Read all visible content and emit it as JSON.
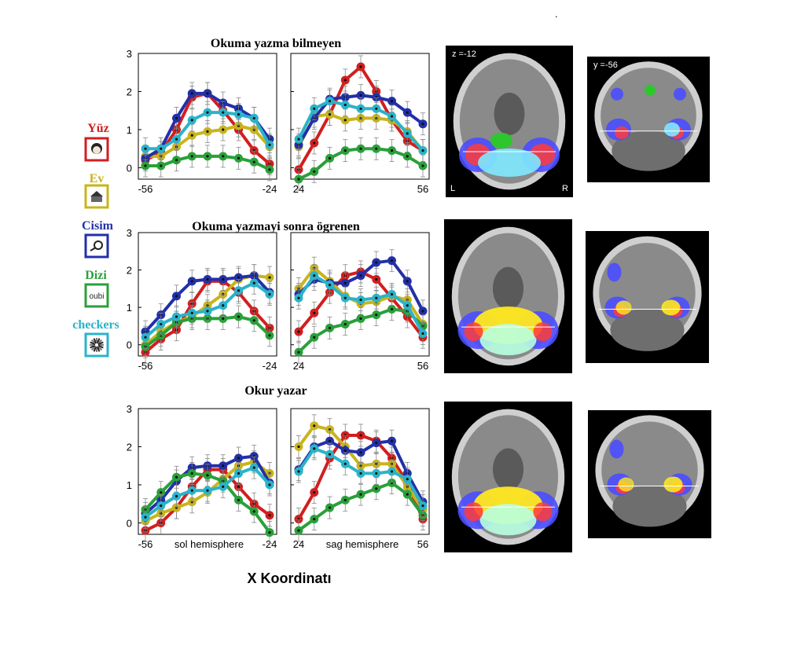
{
  "top_dot": ".",
  "xlabel_main": "X Koordinatı",
  "legend": [
    {
      "label": "Yüz",
      "color": "#d11f1f",
      "icon": "face-icon"
    },
    {
      "label": "Ev",
      "color": "#c8b41e",
      "icon": "house-icon"
    },
    {
      "label": "Cisim",
      "color": "#2230a8",
      "icon": "tool-icon"
    },
    {
      "label": "Dizi",
      "color": "#2aa03a",
      "icon": "string-icon",
      "icon_text": "oubi"
    },
    {
      "label": "checkers",
      "color": "#2bb3c9",
      "icon": "checkerboard-icon"
    }
  ],
  "brain_labels": {
    "axial": "z =-12",
    "coronal": "y =-56",
    "left": "L",
    "right": "R"
  },
  "chart_data": [
    {
      "type": "line",
      "title": "Okuma yazma bilmeyen",
      "ylim": [
        -0.3,
        3
      ],
      "yticks": [
        0,
        1,
        2,
        3
      ],
      "left": {
        "x": [
          -56,
          -52,
          -48,
          -44,
          -40,
          -36,
          -32,
          -28,
          -24
        ],
        "xticks": [
          "-56",
          "-24"
        ],
        "xlabel": "",
        "series": [
          {
            "key": "yuz",
            "color": "#d11f1f",
            "values": [
              0.2,
              0.4,
              1.0,
              1.85,
              1.95,
              1.5,
              1.0,
              0.45,
              0.1
            ]
          },
          {
            "key": "ev",
            "color": "#c8b41e",
            "values": [
              0.3,
              0.3,
              0.55,
              0.85,
              0.95,
              1.0,
              1.1,
              1.0,
              0.55
            ]
          },
          {
            "key": "cisim",
            "color": "#2230a8",
            "values": [
              0.25,
              0.5,
              1.3,
              1.95,
              1.95,
              1.7,
              1.55,
              1.3,
              0.75
            ]
          },
          {
            "key": "dizi",
            "color": "#2aa03a",
            "values": [
              0.05,
              0.05,
              0.2,
              0.3,
              0.3,
              0.3,
              0.25,
              0.15,
              -0.05
            ]
          },
          {
            "key": "checkers",
            "color": "#2bb3c9",
            "values": [
              0.5,
              0.5,
              0.75,
              1.25,
              1.45,
              1.45,
              1.4,
              1.3,
              0.6
            ]
          }
        ]
      },
      "right": {
        "x": [
          24,
          28,
          32,
          36,
          40,
          44,
          48,
          52,
          56
        ],
        "xticks": [
          "24",
          "56"
        ],
        "xlabel": "",
        "series": [
          {
            "key": "yuz",
            "color": "#d11f1f",
            "values": [
              -0.05,
              0.65,
              1.4,
              2.3,
              2.65,
              2.0,
              1.25,
              0.7,
              0.45
            ]
          },
          {
            "key": "ev",
            "color": "#c8b41e",
            "values": [
              0.55,
              1.35,
              1.4,
              1.25,
              1.3,
              1.3,
              1.25,
              0.95,
              0.45
            ]
          },
          {
            "key": "cisim",
            "color": "#2230a8",
            "values": [
              0.6,
              1.3,
              1.8,
              1.85,
              1.9,
              1.85,
              1.75,
              1.45,
              1.15
            ]
          },
          {
            "key": "dizi",
            "color": "#2aa03a",
            "values": [
              -0.3,
              -0.1,
              0.25,
              0.45,
              0.5,
              0.5,
              0.45,
              0.3,
              0.05
            ]
          },
          {
            "key": "checkers",
            "color": "#2bb3c9",
            "values": [
              0.75,
              1.55,
              1.75,
              1.65,
              1.55,
              1.55,
              1.35,
              0.9,
              0.45
            ]
          }
        ]
      }
    },
    {
      "type": "line",
      "title": "Okuma yazmayi sonra ögrenen",
      "ylim": [
        -0.3,
        3
      ],
      "yticks": [
        0,
        1,
        2,
        3
      ],
      "left": {
        "x": [
          -56,
          -52,
          -48,
          -44,
          -40,
          -36,
          -32,
          -28,
          -24
        ],
        "xticks": [
          "-56",
          "-24"
        ],
        "xlabel": "",
        "series": [
          {
            "key": "yuz",
            "color": "#d11f1f",
            "values": [
              -0.2,
              0.15,
              0.4,
              1.1,
              1.7,
              1.7,
              1.4,
              0.9,
              0.45
            ]
          },
          {
            "key": "ev",
            "color": "#c8b41e",
            "values": [
              0.0,
              0.35,
              0.6,
              0.75,
              1.05,
              1.35,
              1.75,
              1.85,
              1.8
            ]
          },
          {
            "key": "cisim",
            "color": "#2230a8",
            "values": [
              0.35,
              0.8,
              1.3,
              1.7,
              1.75,
              1.75,
              1.8,
              1.85,
              1.4
            ]
          },
          {
            "key": "dizi",
            "color": "#2aa03a",
            "values": [
              -0.05,
              0.25,
              0.6,
              0.7,
              0.7,
              0.7,
              0.75,
              0.65,
              0.25
            ]
          },
          {
            "key": "checkers",
            "color": "#2bb3c9",
            "values": [
              0.2,
              0.55,
              0.75,
              0.85,
              0.9,
              1.05,
              1.45,
              1.65,
              1.35
            ]
          }
        ]
      },
      "right": {
        "x": [
          24,
          28,
          32,
          36,
          40,
          44,
          48,
          52,
          56
        ],
        "xticks": [
          "24",
          "56"
        ],
        "xlabel": "",
        "series": [
          {
            "key": "yuz",
            "color": "#d11f1f",
            "values": [
              0.35,
              0.85,
              1.4,
              1.85,
              1.95,
              1.75,
              1.25,
              0.75,
              0.2
            ]
          },
          {
            "key": "ev",
            "color": "#c8b41e",
            "values": [
              1.5,
              2.05,
              1.7,
              1.3,
              1.1,
              1.15,
              1.3,
              1.2,
              0.55
            ]
          },
          {
            "key": "cisim",
            "color": "#2230a8",
            "values": [
              1.35,
              1.75,
              1.65,
              1.65,
              1.85,
              2.2,
              2.25,
              1.7,
              0.9
            ]
          },
          {
            "key": "dizi",
            "color": "#2aa03a",
            "values": [
              -0.2,
              0.2,
              0.45,
              0.55,
              0.7,
              0.8,
              0.95,
              0.9,
              0.5
            ]
          },
          {
            "key": "checkers",
            "color": "#2bb3c9",
            "values": [
              1.25,
              1.85,
              1.6,
              1.25,
              1.2,
              1.25,
              1.35,
              1.05,
              0.3
            ]
          }
        ]
      }
    },
    {
      "type": "line",
      "title": "Okur yazar",
      "ylim": [
        -0.3,
        3
      ],
      "yticks": [
        0,
        1,
        2,
        3
      ],
      "left": {
        "x": [
          -56,
          -52,
          -48,
          -44,
          -40,
          -36,
          -32,
          -28,
          -24
        ],
        "xticks": [
          "-56",
          "-24"
        ],
        "xlabel": "sol hemisphere",
        "series": [
          {
            "key": "yuz",
            "color": "#d11f1f",
            "values": [
              -0.2,
              0.0,
              0.4,
              0.95,
              1.4,
              1.4,
              0.95,
              0.5,
              0.2
            ]
          },
          {
            "key": "ev",
            "color": "#c8b41e",
            "values": [
              0.05,
              0.25,
              0.4,
              0.55,
              0.8,
              1.15,
              1.5,
              1.6,
              1.3
            ]
          },
          {
            "key": "cisim",
            "color": "#2230a8",
            "values": [
              0.25,
              0.6,
              1.1,
              1.45,
              1.5,
              1.5,
              1.7,
              1.75,
              1.05
            ]
          },
          {
            "key": "dizi",
            "color": "#2aa03a",
            "values": [
              0.35,
              0.8,
              1.2,
              1.3,
              1.25,
              1.1,
              0.6,
              0.3,
              -0.25
            ]
          },
          {
            "key": "checkers",
            "color": "#2bb3c9",
            "values": [
              0.15,
              0.45,
              0.7,
              0.85,
              0.85,
              0.95,
              1.3,
              1.45,
              1.0
            ]
          }
        ]
      },
      "right": {
        "x": [
          24,
          28,
          32,
          36,
          40,
          44,
          48,
          52,
          56
        ],
        "xticks": [
          "24",
          "56"
        ],
        "xlabel": "sag hemisphere",
        "series": [
          {
            "key": "yuz",
            "color": "#d11f1f",
            "values": [
              0.1,
              0.8,
              1.7,
              2.3,
              2.3,
              2.15,
              1.7,
              1.05,
              0.1
            ]
          },
          {
            "key": "ev",
            "color": "#c8b41e",
            "values": [
              2.0,
              2.55,
              2.45,
              2.0,
              1.5,
              1.55,
              1.55,
              0.95,
              0.35
            ]
          },
          {
            "key": "cisim",
            "color": "#2230a8",
            "values": [
              1.4,
              2.0,
              2.15,
              1.9,
              1.85,
              2.1,
              2.15,
              1.3,
              0.55
            ]
          },
          {
            "key": "dizi",
            "color": "#2aa03a",
            "values": [
              -0.2,
              0.1,
              0.4,
              0.6,
              0.75,
              0.9,
              1.05,
              0.75,
              0.2
            ]
          },
          {
            "key": "checkers",
            "color": "#2bb3c9",
            "values": [
              1.35,
              1.95,
              1.8,
              1.55,
              1.3,
              1.3,
              1.35,
              1.15,
              0.45
            ]
          }
        ]
      }
    }
  ]
}
